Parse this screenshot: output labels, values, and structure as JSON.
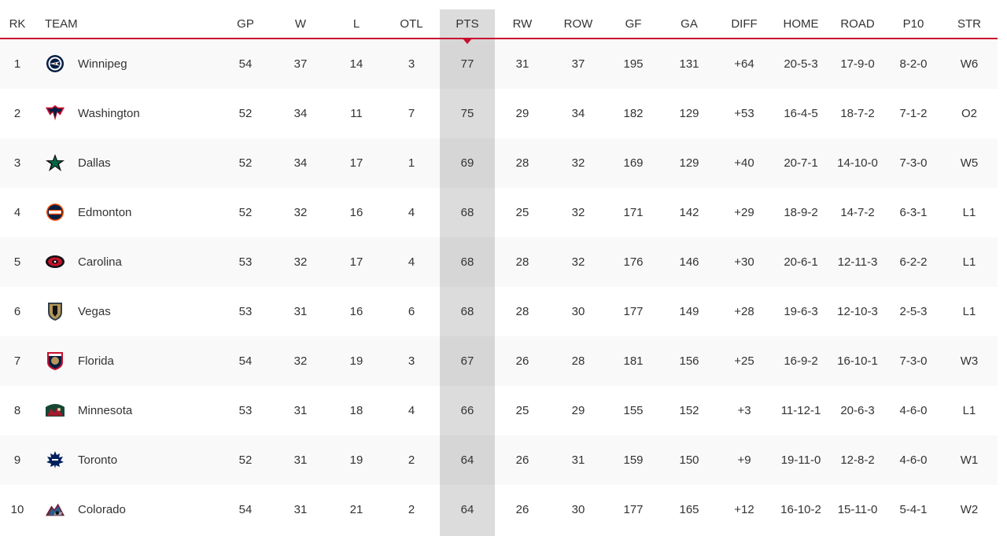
{
  "headers": {
    "rk": "RK",
    "team": "TEAM",
    "gp": "GP",
    "w": "W",
    "l": "L",
    "otl": "OTL",
    "pts": "PTS",
    "rw": "RW",
    "row": "ROW",
    "gf": "GF",
    "ga": "GA",
    "diff": "DIFF",
    "home": "HOME",
    "road": "ROAD",
    "p10": "P10",
    "str": "STR"
  },
  "colors": {
    "accent": "#c8102e",
    "positive": "#3a9a3a",
    "sorted_column_bg": "#dcdcdc"
  },
  "rows": [
    {
      "rk": "1",
      "team": "Winnipeg",
      "logo": "winnipeg-jets-logo-icon",
      "gp": "54",
      "w": "37",
      "l": "14",
      "otl": "3",
      "pts": "77",
      "rw": "31",
      "row": "37",
      "gf": "195",
      "ga": "131",
      "diff": "+64",
      "home": "20-5-3",
      "road": "17-9-0",
      "p10": "8-2-0",
      "str": "W6"
    },
    {
      "rk": "2",
      "team": "Washington",
      "logo": "washington-capitals-logo-icon",
      "gp": "52",
      "w": "34",
      "l": "11",
      "otl": "7",
      "pts": "75",
      "rw": "29",
      "row": "34",
      "gf": "182",
      "ga": "129",
      "diff": "+53",
      "home": "16-4-5",
      "road": "18-7-2",
      "p10": "7-1-2",
      "str": "O2"
    },
    {
      "rk": "3",
      "team": "Dallas",
      "logo": "dallas-stars-logo-icon",
      "gp": "52",
      "w": "34",
      "l": "17",
      "otl": "1",
      "pts": "69",
      "rw": "28",
      "row": "32",
      "gf": "169",
      "ga": "129",
      "diff": "+40",
      "home": "20-7-1",
      "road": "14-10-0",
      "p10": "7-3-0",
      "str": "W5"
    },
    {
      "rk": "4",
      "team": "Edmonton",
      "logo": "edmonton-oilers-logo-icon",
      "gp": "52",
      "w": "32",
      "l": "16",
      "otl": "4",
      "pts": "68",
      "rw": "25",
      "row": "32",
      "gf": "171",
      "ga": "142",
      "diff": "+29",
      "home": "18-9-2",
      "road": "14-7-2",
      "p10": "6-3-1",
      "str": "L1"
    },
    {
      "rk": "5",
      "team": "Carolina",
      "logo": "carolina-hurricanes-logo-icon",
      "gp": "53",
      "w": "32",
      "l": "17",
      "otl": "4",
      "pts": "68",
      "rw": "28",
      "row": "32",
      "gf": "176",
      "ga": "146",
      "diff": "+30",
      "home": "20-6-1",
      "road": "12-11-3",
      "p10": "6-2-2",
      "str": "L1"
    },
    {
      "rk": "6",
      "team": "Vegas",
      "logo": "vegas-golden-knights-logo-icon",
      "gp": "53",
      "w": "31",
      "l": "16",
      "otl": "6",
      "pts": "68",
      "rw": "28",
      "row": "30",
      "gf": "177",
      "ga": "149",
      "diff": "+28",
      "home": "19-6-3",
      "road": "12-10-3",
      "p10": "2-5-3",
      "str": "L1"
    },
    {
      "rk": "7",
      "team": "Florida",
      "logo": "florida-panthers-logo-icon",
      "gp": "54",
      "w": "32",
      "l": "19",
      "otl": "3",
      "pts": "67",
      "rw": "26",
      "row": "28",
      "gf": "181",
      "ga": "156",
      "diff": "+25",
      "home": "16-9-2",
      "road": "16-10-1",
      "p10": "7-3-0",
      "str": "W3"
    },
    {
      "rk": "8",
      "team": "Minnesota",
      "logo": "minnesota-wild-logo-icon",
      "gp": "53",
      "w": "31",
      "l": "18",
      "otl": "4",
      "pts": "66",
      "rw": "25",
      "row": "29",
      "gf": "155",
      "ga": "152",
      "diff": "+3",
      "home": "11-12-1",
      "road": "20-6-3",
      "p10": "4-6-0",
      "str": "L1"
    },
    {
      "rk": "9",
      "team": "Toronto",
      "logo": "toronto-maple-leafs-logo-icon",
      "gp": "52",
      "w": "31",
      "l": "19",
      "otl": "2",
      "pts": "64",
      "rw": "26",
      "row": "31",
      "gf": "159",
      "ga": "150",
      "diff": "+9",
      "home": "19-11-0",
      "road": "12-8-2",
      "p10": "4-6-0",
      "str": "W1"
    },
    {
      "rk": "10",
      "team": "Colorado",
      "logo": "colorado-avalanche-logo-icon",
      "gp": "54",
      "w": "31",
      "l": "21",
      "otl": "2",
      "pts": "64",
      "rw": "26",
      "row": "30",
      "gf": "177",
      "ga": "165",
      "diff": "+12",
      "home": "16-10-2",
      "road": "15-11-0",
      "p10": "5-4-1",
      "str": "W2"
    }
  ]
}
